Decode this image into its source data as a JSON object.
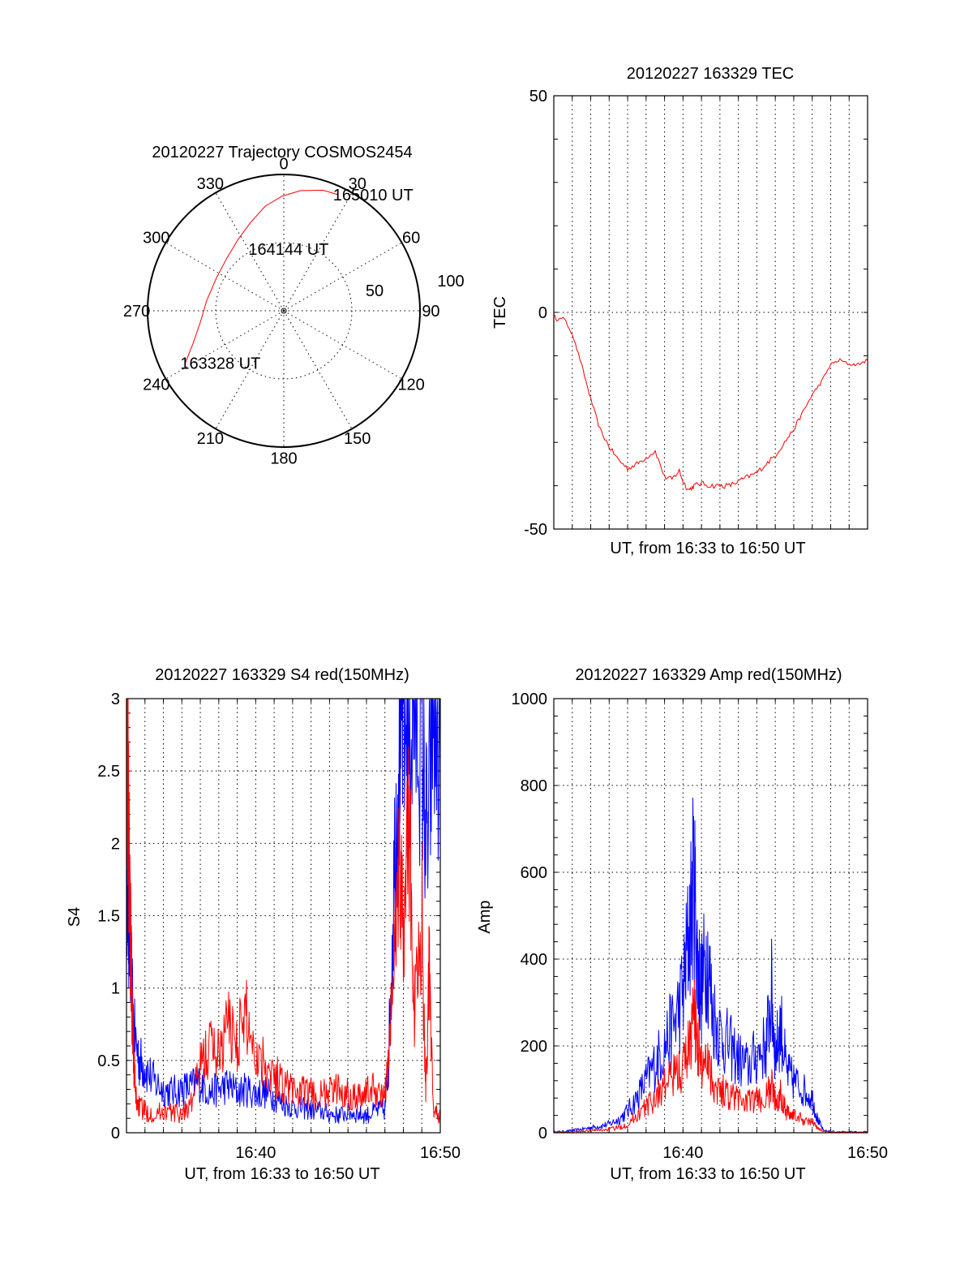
{
  "chart_data": [
    {
      "id": "trajectory",
      "type": "polar",
      "title": "20120227 Trajectory COSMOS2454",
      "azimuth_labels": [
        "0",
        "30",
        "60",
        "90",
        "120",
        "150",
        "180",
        "210",
        "240",
        "270",
        "300",
        "330"
      ],
      "radial_labels": [
        "50",
        "100"
      ],
      "rlim": [
        0,
        100
      ],
      "track_color": "#ff0000",
      "track": [
        {
          "az": 242,
          "r": 82
        },
        {
          "az": 250,
          "r": 71
        },
        {
          "az": 262,
          "r": 62
        },
        {
          "az": 278,
          "r": 57
        },
        {
          "az": 296,
          "r": 55
        },
        {
          "az": 313,
          "r": 57
        },
        {
          "az": 327,
          "r": 62
        },
        {
          "az": 339,
          "r": 69
        },
        {
          "az": 350,
          "r": 78
        },
        {
          "az": 359,
          "r": 84
        },
        {
          "az": 8,
          "r": 89
        },
        {
          "az": 18,
          "r": 93
        },
        {
          "az": 25,
          "r": 94
        }
      ],
      "annotations": [
        {
          "text": "165010 UT",
          "az": 25,
          "r": 94
        },
        {
          "text": "164144 UT",
          "az": 340,
          "r": 48
        },
        {
          "text": "163328 UT",
          "az": 242,
          "r": 82
        }
      ]
    },
    {
      "id": "tec",
      "type": "line",
      "title": "20120227 163329 TEC",
      "xlabel": "UT, from 16:33 to 16:50 UT",
      "ylabel": "TEC",
      "ylim": [
        -50,
        50
      ],
      "yticks": [
        "50",
        "0",
        "-50"
      ],
      "xlim_minutes": [
        0,
        17
      ],
      "xticks": [],
      "grid": "dotted",
      "series": [
        {
          "color": "#ff0000",
          "x": [
            0.0,
            0.2,
            0.5,
            1.0,
            1.5,
            2.0,
            2.5,
            3.0,
            3.5,
            4.0,
            4.5,
            5.0,
            5.5,
            6.0,
            6.4,
            6.8,
            7.0,
            7.3,
            7.6,
            8.0,
            8.5,
            9.0,
            9.5,
            10.0,
            10.5,
            11.0,
            11.5,
            12.0,
            12.5,
            13.0,
            13.5,
            14.0,
            14.5,
            15.0,
            15.5,
            16.0,
            16.5,
            17.0
          ],
          "y": [
            -0.5,
            -2,
            -1,
            -5,
            -12,
            -20,
            -27,
            -31,
            -34,
            -36,
            -35,
            -33.5,
            -32,
            -38,
            -38.5,
            -36.5,
            -39,
            -41,
            -40,
            -39.5,
            -40,
            -40,
            -40,
            -39,
            -38,
            -37,
            -35,
            -33,
            -30,
            -27,
            -23,
            -19,
            -16,
            -12,
            -11,
            -12,
            -12,
            -11
          ]
        }
      ]
    },
    {
      "id": "s4",
      "type": "line",
      "title": "20120227 163329 S4 red(150MHz)",
      "xlabel": "UT, from 16:33 to 16:50 UT",
      "ylabel": "S4",
      "ylim": [
        0,
        3
      ],
      "yticks": [
        "0",
        "0.5",
        "1",
        "1.5",
        "2",
        "2.5",
        "3"
      ],
      "xlim_minutes": [
        0,
        17
      ],
      "xticks": [
        {
          "minute": 7,
          "label": "16:40"
        },
        {
          "minute": 17,
          "label": "16:50"
        }
      ],
      "grid": "dotted",
      "series": [
        {
          "color": "#0000ff",
          "x": [
            0.0,
            0.1,
            0.2,
            0.4,
            0.7,
            1.0,
            1.5,
            2.0,
            2.5,
            3.0,
            3.5,
            4.0,
            4.5,
            5.0,
            5.5,
            6.0,
            6.5,
            7.0,
            7.5,
            8.0,
            8.5,
            9.0,
            9.5,
            10.0,
            10.5,
            11.0,
            11.5,
            12.0,
            12.5,
            13.0,
            13.5,
            14.0,
            14.2,
            14.5,
            14.8,
            15.0,
            15.3,
            15.6,
            16.0,
            16.3,
            16.6,
            17.0
          ],
          "y": [
            2.0,
            1.6,
            1.2,
            0.7,
            0.5,
            0.45,
            0.35,
            0.3,
            0.28,
            0.3,
            0.32,
            0.35,
            0.28,
            0.3,
            0.33,
            0.28,
            0.3,
            0.27,
            0.28,
            0.25,
            0.2,
            0.18,
            0.17,
            0.16,
            0.15,
            0.13,
            0.12,
            0.14,
            0.13,
            0.12,
            0.15,
            0.16,
            0.5,
            1.8,
            2.9,
            3.0,
            2.7,
            3.0,
            2.8,
            1.9,
            3.0,
            2.5
          ]
        },
        {
          "color": "#ff0000",
          "x": [
            0.0,
            0.1,
            0.2,
            0.3,
            0.4,
            0.5,
            0.7,
            1.0,
            1.5,
            2.0,
            2.5,
            3.0,
            3.5,
            4.0,
            4.5,
            5.0,
            5.5,
            6.0,
            6.5,
            7.0,
            7.5,
            8.0,
            8.5,
            9.0,
            9.5,
            10.0,
            10.5,
            11.0,
            11.5,
            12.0,
            12.5,
            13.0,
            13.5,
            14.0,
            14.2,
            14.5,
            14.8,
            15.0,
            15.3,
            15.6,
            16.0,
            16.2,
            16.4,
            16.6,
            17.0
          ],
          "y": [
            3.0,
            2.3,
            1.5,
            0.9,
            0.5,
            0.25,
            0.18,
            0.15,
            0.13,
            0.15,
            0.14,
            0.13,
            0.2,
            0.45,
            0.6,
            0.55,
            0.75,
            0.65,
            0.8,
            0.55,
            0.5,
            0.4,
            0.35,
            0.3,
            0.28,
            0.27,
            0.25,
            0.28,
            0.3,
            0.27,
            0.25,
            0.28,
            0.3,
            0.25,
            0.5,
            1.2,
            1.9,
            1.4,
            2.2,
            0.8,
            1.6,
            0.3,
            1.1,
            0.2,
            0.1
          ]
        }
      ]
    },
    {
      "id": "amp",
      "type": "line",
      "title": "20120227 163329 Amp red(150MHz)",
      "xlabel": "UT, from 16:33 to 16:50 UT",
      "ylabel": "Amp",
      "ylim": [
        0,
        1000
      ],
      "yticks": [
        "0",
        "200",
        "400",
        "600",
        "800",
        "1000"
      ],
      "xlim_minutes": [
        0,
        17
      ],
      "xticks": [
        {
          "minute": 7,
          "label": "16:40"
        },
        {
          "minute": 17,
          "label": "16:50"
        }
      ],
      "grid": "dotted",
      "series": [
        {
          "color": "#0000ff",
          "x": [
            0.0,
            0.5,
            1.0,
            1.5,
            2.0,
            2.5,
            3.0,
            3.5,
            4.0,
            4.5,
            5.0,
            5.5,
            6.0,
            6.5,
            7.0,
            7.3,
            7.6,
            7.8,
            8.0,
            8.3,
            8.6,
            9.0,
            9.5,
            10.0,
            10.5,
            11.0,
            11.5,
            11.8,
            12.0,
            12.3,
            12.6,
            13.0,
            13.5,
            14.0,
            14.3,
            14.6,
            15.0,
            16.0,
            17.0
          ],
          "y": [
            2,
            3,
            5,
            8,
            12,
            15,
            20,
            30,
            50,
            80,
            120,
            160,
            200,
            250,
            320,
            450,
            590,
            380,
            330,
            420,
            280,
            230,
            200,
            170,
            150,
            180,
            200,
            320,
            180,
            250,
            140,
            120,
            100,
            80,
            30,
            5,
            3,
            2,
            2
          ]
        },
        {
          "color": "#ff0000",
          "x": [
            0.0,
            0.5,
            1.0,
            1.5,
            2.0,
            2.5,
            3.0,
            3.5,
            4.0,
            4.5,
            5.0,
            5.5,
            6.0,
            6.5,
            7.0,
            7.3,
            7.6,
            7.8,
            8.0,
            8.3,
            8.6,
            9.0,
            9.5,
            10.0,
            10.5,
            11.0,
            11.5,
            11.8,
            12.0,
            12.3,
            12.6,
            13.0,
            13.5,
            14.0,
            14.3,
            14.6,
            15.0,
            16.0,
            17.0
          ],
          "y": [
            1,
            1,
            2,
            3,
            5,
            6,
            8,
            12,
            20,
            40,
            60,
            80,
            110,
            130,
            150,
            200,
            270,
            210,
            150,
            190,
            120,
            100,
            90,
            80,
            70,
            75,
            80,
            110,
            70,
            90,
            50,
            40,
            30,
            25,
            10,
            3,
            2,
            1,
            1
          ]
        }
      ]
    }
  ]
}
